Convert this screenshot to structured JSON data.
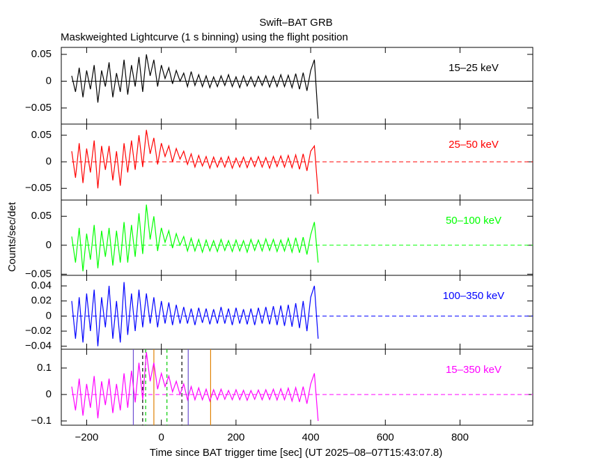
{
  "title": "Swift–BAT GRB",
  "subtitle": "Maskweighted Lightcurve (1 s binning) using the flight position",
  "x_label": "Time since BAT trigger time [sec] (UT 2025–08–07T15:43:07.8)",
  "y_label": "Counts/sec/det",
  "chart_data": [
    {
      "type": "line",
      "xlim": [
        -268,
        995
      ],
      "xticks": [
        {
          "value": -200,
          "label": "−200"
        },
        0,
        200,
        400,
        600,
        800
      ],
      "ylim": [
        -0.08,
        0.063
      ],
      "yticks": [
        {
          "value": -0.05,
          "label": "−0.05"
        },
        0,
        0.05
      ],
      "x": [
        -240,
        -230,
        -220,
        -210,
        -200,
        -190,
        -180,
        -170,
        -160,
        -150,
        -140,
        -130,
        -120,
        -110,
        -100,
        -90,
        -80,
        -70,
        -60,
        -50,
        -40,
        -30,
        -20,
        -10,
        0,
        10,
        20,
        30,
        40,
        50,
        60,
        70,
        80,
        90,
        100,
        110,
        120,
        130,
        140,
        150,
        160,
        170,
        180,
        190,
        200,
        210,
        220,
        230,
        240,
        250,
        260,
        270,
        280,
        290,
        300,
        310,
        320,
        330,
        340,
        350,
        360,
        370,
        380,
        390,
        400,
        410,
        420
      ],
      "series": [
        {
          "name": "15–25 keV",
          "color": "#000000",
          "values": [
            0.01,
            -0.02,
            0.025,
            -0.03,
            0.02,
            -0.015,
            0.03,
            -0.04,
            0.02,
            -0.01,
            0.035,
            -0.03,
            0.015,
            -0.02,
            0.04,
            -0.025,
            0.03,
            -0.01,
            0.045,
            -0.02,
            0.05,
            0.01,
            0.04,
            -0.01,
            0.03,
            0.005,
            0.025,
            -0.005,
            0.02,
            0.0,
            0.015,
            -0.01,
            0.018,
            -0.008,
            0.012,
            -0.01,
            0.01,
            -0.012,
            0.008,
            -0.01,
            0.01,
            -0.008,
            0.012,
            -0.01,
            0.008,
            -0.012,
            0.01,
            -0.009,
            0.008,
            -0.01,
            0.009,
            -0.008,
            0.01,
            -0.011,
            0.009,
            -0.01,
            0.012,
            -0.01,
            0.011,
            -0.012,
            0.014,
            -0.015,
            0.016,
            -0.018,
            0.02,
            0.04,
            -0.07
          ]
        }
      ]
    },
    {
      "type": "line",
      "xlim": [
        -268,
        995
      ],
      "xticks": [
        {
          "value": -200,
          "label": "−200"
        },
        0,
        200,
        400,
        600,
        800
      ],
      "ylim": [
        -0.072,
        0.071
      ],
      "yticks": [
        {
          "value": -0.05,
          "label": "−0.05"
        },
        0,
        0.05
      ],
      "x": [
        -240,
        -230,
        -220,
        -210,
        -200,
        -190,
        -180,
        -170,
        -160,
        -150,
        -140,
        -130,
        -120,
        -110,
        -100,
        -90,
        -80,
        -70,
        -60,
        -50,
        -40,
        -30,
        -20,
        -10,
        0,
        10,
        20,
        30,
        40,
        50,
        60,
        70,
        80,
        90,
        100,
        110,
        120,
        130,
        140,
        150,
        160,
        170,
        180,
        190,
        200,
        210,
        220,
        230,
        240,
        250,
        260,
        270,
        280,
        290,
        300,
        310,
        320,
        330,
        340,
        350,
        360,
        370,
        380,
        390,
        400,
        410,
        420
      ],
      "series": [
        {
          "name": "25–50 keV",
          "color": "#ff0000",
          "values": [
            0.02,
            -0.03,
            0.035,
            -0.04,
            0.025,
            -0.02,
            0.04,
            -0.05,
            0.03,
            -0.015,
            0.03,
            -0.035,
            0.02,
            -0.045,
            0.035,
            -0.02,
            0.04,
            -0.015,
            0.05,
            -0.01,
            0.06,
            0.015,
            0.045,
            -0.005,
            0.035,
            0.01,
            0.03,
            0.0,
            0.025,
            0.005,
            0.02,
            -0.005,
            0.015,
            -0.01,
            0.012,
            -0.008,
            0.01,
            -0.012,
            0.009,
            -0.01,
            0.008,
            -0.01,
            0.01,
            -0.012,
            0.007,
            -0.01,
            0.009,
            -0.011,
            0.008,
            -0.009,
            0.01,
            -0.01,
            0.008,
            -0.012,
            0.01,
            -0.009,
            0.011,
            -0.01,
            0.012,
            -0.011,
            0.013,
            -0.014,
            0.015,
            -0.017,
            0.02,
            0.03,
            -0.06
          ]
        }
      ]
    },
    {
      "type": "line",
      "xlim": [
        -268,
        995
      ],
      "xticks": [
        {
          "value": -200,
          "label": "−200"
        },
        0,
        200,
        400,
        600,
        800
      ],
      "ylim": [
        -0.052,
        0.078
      ],
      "yticks": [
        {
          "value": -0.05,
          "label": "−0.05"
        },
        0,
        0.05
      ],
      "x": [
        -240,
        -230,
        -220,
        -210,
        -200,
        -190,
        -180,
        -170,
        -160,
        -150,
        -140,
        -130,
        -120,
        -110,
        -100,
        -90,
        -80,
        -70,
        -60,
        -50,
        -40,
        -30,
        -20,
        -10,
        0,
        10,
        20,
        30,
        40,
        50,
        60,
        70,
        80,
        90,
        100,
        110,
        120,
        130,
        140,
        150,
        160,
        170,
        180,
        190,
        200,
        210,
        220,
        230,
        240,
        250,
        260,
        270,
        280,
        290,
        300,
        310,
        320,
        330,
        340,
        350,
        360,
        370,
        380,
        390,
        400,
        410,
        420
      ],
      "series": [
        {
          "name": "50–100 keV",
          "color": "#00ff00",
          "values": [
            0.015,
            -0.03,
            0.03,
            -0.045,
            0.02,
            -0.025,
            0.035,
            -0.04,
            0.025,
            -0.02,
            0.03,
            -0.035,
            0.025,
            -0.03,
            0.04,
            -0.03,
            0.035,
            -0.02,
            0.055,
            -0.015,
            0.07,
            0.01,
            0.05,
            -0.01,
            0.03,
            0.005,
            0.025,
            -0.005,
            0.02,
            0.0,
            0.015,
            -0.01,
            0.012,
            -0.01,
            0.01,
            -0.012,
            0.009,
            -0.01,
            0.008,
            -0.011,
            0.01,
            -0.009,
            0.008,
            -0.011,
            0.009,
            -0.01,
            0.008,
            -0.012,
            0.01,
            -0.009,
            0.009,
            -0.01,
            0.011,
            -0.009,
            0.01,
            -0.011,
            0.009,
            -0.01,
            0.012,
            -0.012,
            0.013,
            -0.013,
            0.014,
            -0.016,
            0.018,
            0.04,
            -0.03
          ]
        }
      ]
    },
    {
      "type": "line",
      "xlim": [
        -268,
        995
      ],
      "xticks": [
        {
          "value": -200,
          "label": "−200"
        },
        0,
        200,
        400,
        600,
        800
      ],
      "ylim": [
        -0.044,
        0.054
      ],
      "yticks": [
        {
          "value": -0.04,
          "label": "−0.04"
        },
        {
          "value": -0.02,
          "label": "−0.02"
        },
        0,
        0.02,
        0.04
      ],
      "x": [
        -240,
        -230,
        -220,
        -210,
        -200,
        -190,
        -180,
        -170,
        -160,
        -150,
        -140,
        -130,
        -120,
        -110,
        -100,
        -90,
        -80,
        -70,
        -60,
        -50,
        -40,
        -30,
        -20,
        -10,
        0,
        10,
        20,
        30,
        40,
        50,
        60,
        70,
        80,
        90,
        100,
        110,
        120,
        130,
        140,
        150,
        160,
        170,
        180,
        190,
        200,
        210,
        220,
        230,
        240,
        250,
        260,
        270,
        280,
        290,
        300,
        310,
        320,
        330,
        340,
        350,
        360,
        370,
        380,
        390,
        400,
        410,
        420
      ],
      "series": [
        {
          "name": "100–350 keV",
          "color": "#0000ff",
          "values": [
            0.02,
            -0.03,
            0.025,
            -0.035,
            0.03,
            -0.02,
            0.035,
            -0.04,
            0.025,
            -0.015,
            0.04,
            -0.03,
            0.02,
            -0.035,
            0.045,
            -0.025,
            0.03,
            -0.02,
            0.035,
            -0.015,
            0.03,
            -0.01,
            0.025,
            -0.015,
            0.02,
            -0.01,
            0.018,
            -0.012,
            0.015,
            -0.01,
            0.012,
            -0.01,
            0.01,
            -0.012,
            0.011,
            -0.009,
            0.01,
            -0.011,
            0.009,
            -0.01,
            0.012,
            -0.01,
            0.01,
            -0.012,
            0.011,
            -0.01,
            0.009,
            -0.011,
            0.01,
            -0.012,
            0.011,
            -0.01,
            0.012,
            -0.011,
            0.013,
            -0.012,
            0.014,
            -0.013,
            0.015,
            -0.014,
            0.017,
            -0.016,
            0.02,
            -0.02,
            0.025,
            0.04,
            -0.03
          ]
        }
      ]
    },
    {
      "type": "line",
      "xlim": [
        -268,
        995
      ],
      "xticks": [
        {
          "value": -200,
          "label": "−200"
        },
        0,
        200,
        400,
        600,
        800
      ],
      "ylim": [
        -0.116,
        0.171
      ],
      "yticks": [
        {
          "value": -0.1,
          "label": "−0.1"
        },
        0,
        0.1
      ],
      "x": [
        -240,
        -230,
        -220,
        -210,
        -200,
        -190,
        -180,
        -170,
        -160,
        -150,
        -140,
        -130,
        -120,
        -110,
        -100,
        -90,
        -80,
        -70,
        -60,
        -50,
        -40,
        -30,
        -20,
        -10,
        0,
        10,
        20,
        30,
        40,
        50,
        60,
        70,
        80,
        90,
        100,
        110,
        120,
        130,
        140,
        150,
        160,
        170,
        180,
        190,
        200,
        210,
        220,
        230,
        240,
        250,
        260,
        270,
        280,
        290,
        300,
        310,
        320,
        330,
        340,
        350,
        360,
        370,
        380,
        390,
        400,
        410,
        420
      ],
      "series": [
        {
          "name": "15–350 keV",
          "color": "#ff00ff",
          "values": [
            0.03,
            -0.06,
            0.06,
            -0.08,
            0.04,
            -0.05,
            0.07,
            -0.09,
            0.05,
            -0.04,
            0.06,
            -0.07,
            0.04,
            -0.06,
            0.08,
            -0.05,
            0.09,
            -0.03,
            0.12,
            -0.02,
            0.16,
            0.05,
            0.12,
            0.02,
            0.08,
            0.03,
            0.07,
            0.01,
            0.05,
            0.0,
            0.04,
            -0.02,
            0.03,
            -0.02,
            0.025,
            -0.02,
            0.02,
            -0.025,
            0.018,
            -0.02,
            0.02,
            -0.018,
            0.015,
            -0.02,
            0.018,
            -0.02,
            0.016,
            -0.022,
            0.015,
            -0.018,
            0.017,
            -0.02,
            0.018,
            -0.019,
            0.02,
            -0.021,
            0.022,
            -0.02,
            0.024,
            -0.025,
            0.026,
            -0.028,
            0.03,
            -0.035,
            0.04,
            0.08,
            -0.1
          ]
        }
      ],
      "vlines": [
        {
          "x": -75,
          "color": "#6a4cd0",
          "dashed": false
        },
        {
          "x": -50,
          "color": "#000000",
          "dashed": true
        },
        {
          "x": -42,
          "color": "#00cc00",
          "dashed": true
        },
        {
          "x": -20,
          "color": "#e08000",
          "dashed": false
        },
        {
          "x": 15,
          "color": "#00cc00",
          "dashed": true
        },
        {
          "x": 55,
          "color": "#000000",
          "dashed": true
        },
        {
          "x": 72,
          "color": "#6a4cd0",
          "dashed": false
        },
        {
          "x": 132,
          "color": "#e08000",
          "dashed": false
        }
      ]
    }
  ]
}
